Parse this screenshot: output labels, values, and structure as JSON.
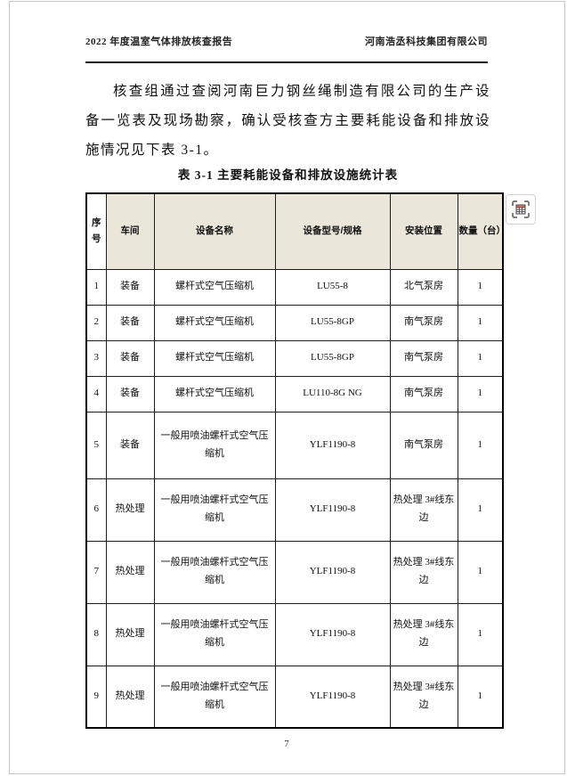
{
  "header": {
    "left": "2022 年度温室气体排放核查报告",
    "right": "河南浩丞科技集团有限公司"
  },
  "paragraph": "核查组通过查阅河南巨力钢丝绳制造有限公司的生产设备一览表及现场勘察，确认受核查方主要耗能设备和排放设施情况见下表 3-1。",
  "table": {
    "title": "表 3-1 主要耗能设备和排放设施统计表",
    "headers": [
      "序号",
      "车间",
      "设备名称",
      "设备型号/规格",
      "安装位置",
      "数量（台）"
    ],
    "rows": [
      [
        "1",
        "装备",
        "螺杆式空气压缩机",
        "LU55-8",
        "北气泵房",
        "1"
      ],
      [
        "2",
        "装备",
        "螺杆式空气压缩机",
        "LU55-8GP",
        "南气泵房",
        "1"
      ],
      [
        "3",
        "装备",
        "螺杆式空气压缩机",
        "LU55-8GP",
        "南气泵房",
        "1"
      ],
      [
        "4",
        "装备",
        "螺杆式空气压缩机",
        "LU110-8G NG",
        "南气泵房",
        "1"
      ],
      [
        "5",
        "装备",
        "一般用喷油螺杆式空气压缩机",
        "YLF1190-8",
        "南气泵房",
        "1"
      ],
      [
        "6",
        "热处理",
        "一般用喷油螺杆式空气压缩机",
        "YLF1190-8",
        "热处理 3#线东边",
        "1"
      ],
      [
        "7",
        "热处理",
        "一般用喷油螺杆式空气压缩机",
        "YLF1190-8",
        "热处理 3#线东边",
        "1"
      ],
      [
        "8",
        "热处理",
        "一般用喷油螺杆式空气压缩机",
        "YLF1190-8",
        "热处理 3#线东边",
        "1"
      ],
      [
        "9",
        "热处理",
        "一般用喷油螺杆式空气压缩机",
        "YLF1190-8",
        "热处理 3#线东边",
        "1"
      ]
    ],
    "header_bg": "#eae7da"
  },
  "footer": {
    "page_number": "7"
  },
  "colors": {
    "header_rule": "#141414",
    "table_border": "#1c1c1c",
    "header_cell_bg": "#eae7da",
    "tool_icon_accent": "#e0796f",
    "page_border": "#c6c6c6"
  },
  "icons": {
    "table_select": "table-select-icon"
  }
}
